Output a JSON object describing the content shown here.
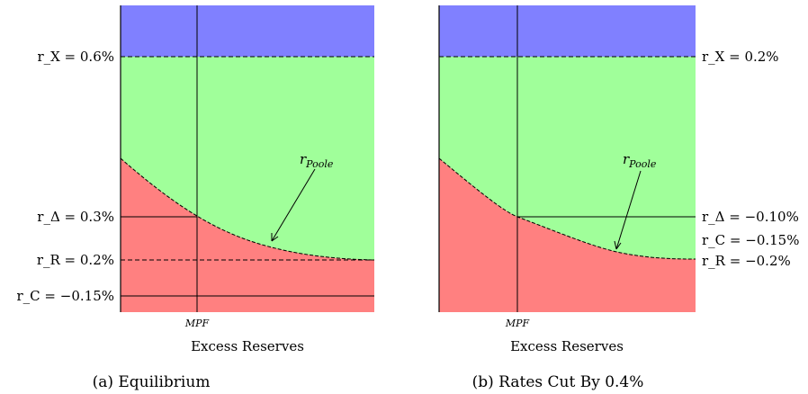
{
  "panels": [
    {
      "id": "a",
      "caption": "(a) Equilibrium",
      "x_axis_label": "Excess Reserves",
      "mpf_label": "MPF",
      "curve_label": "Poole",
      "rates": {
        "x": "r_X = 0.6%",
        "delta": "r_Δ = 0.3%",
        "r": "r_R = 0.2%",
        "c": "r_C = −0.15%"
      }
    },
    {
      "id": "b",
      "caption": "(b) Rates Cut By 0.4%",
      "x_axis_label": "Excess Reserves",
      "mpf_label": "MPF",
      "curve_label": "Poole",
      "rates": {
        "x": "r_X = 0.2%",
        "delta": "r_Δ = −0.10%",
        "c": "r_C = −0.15%",
        "r": "r_R = −0.2%"
      }
    }
  ],
  "colors": {
    "top_band": "#8080ff",
    "middle_band": "#a0ff9a",
    "bottom_region": "#ff8080"
  }
}
